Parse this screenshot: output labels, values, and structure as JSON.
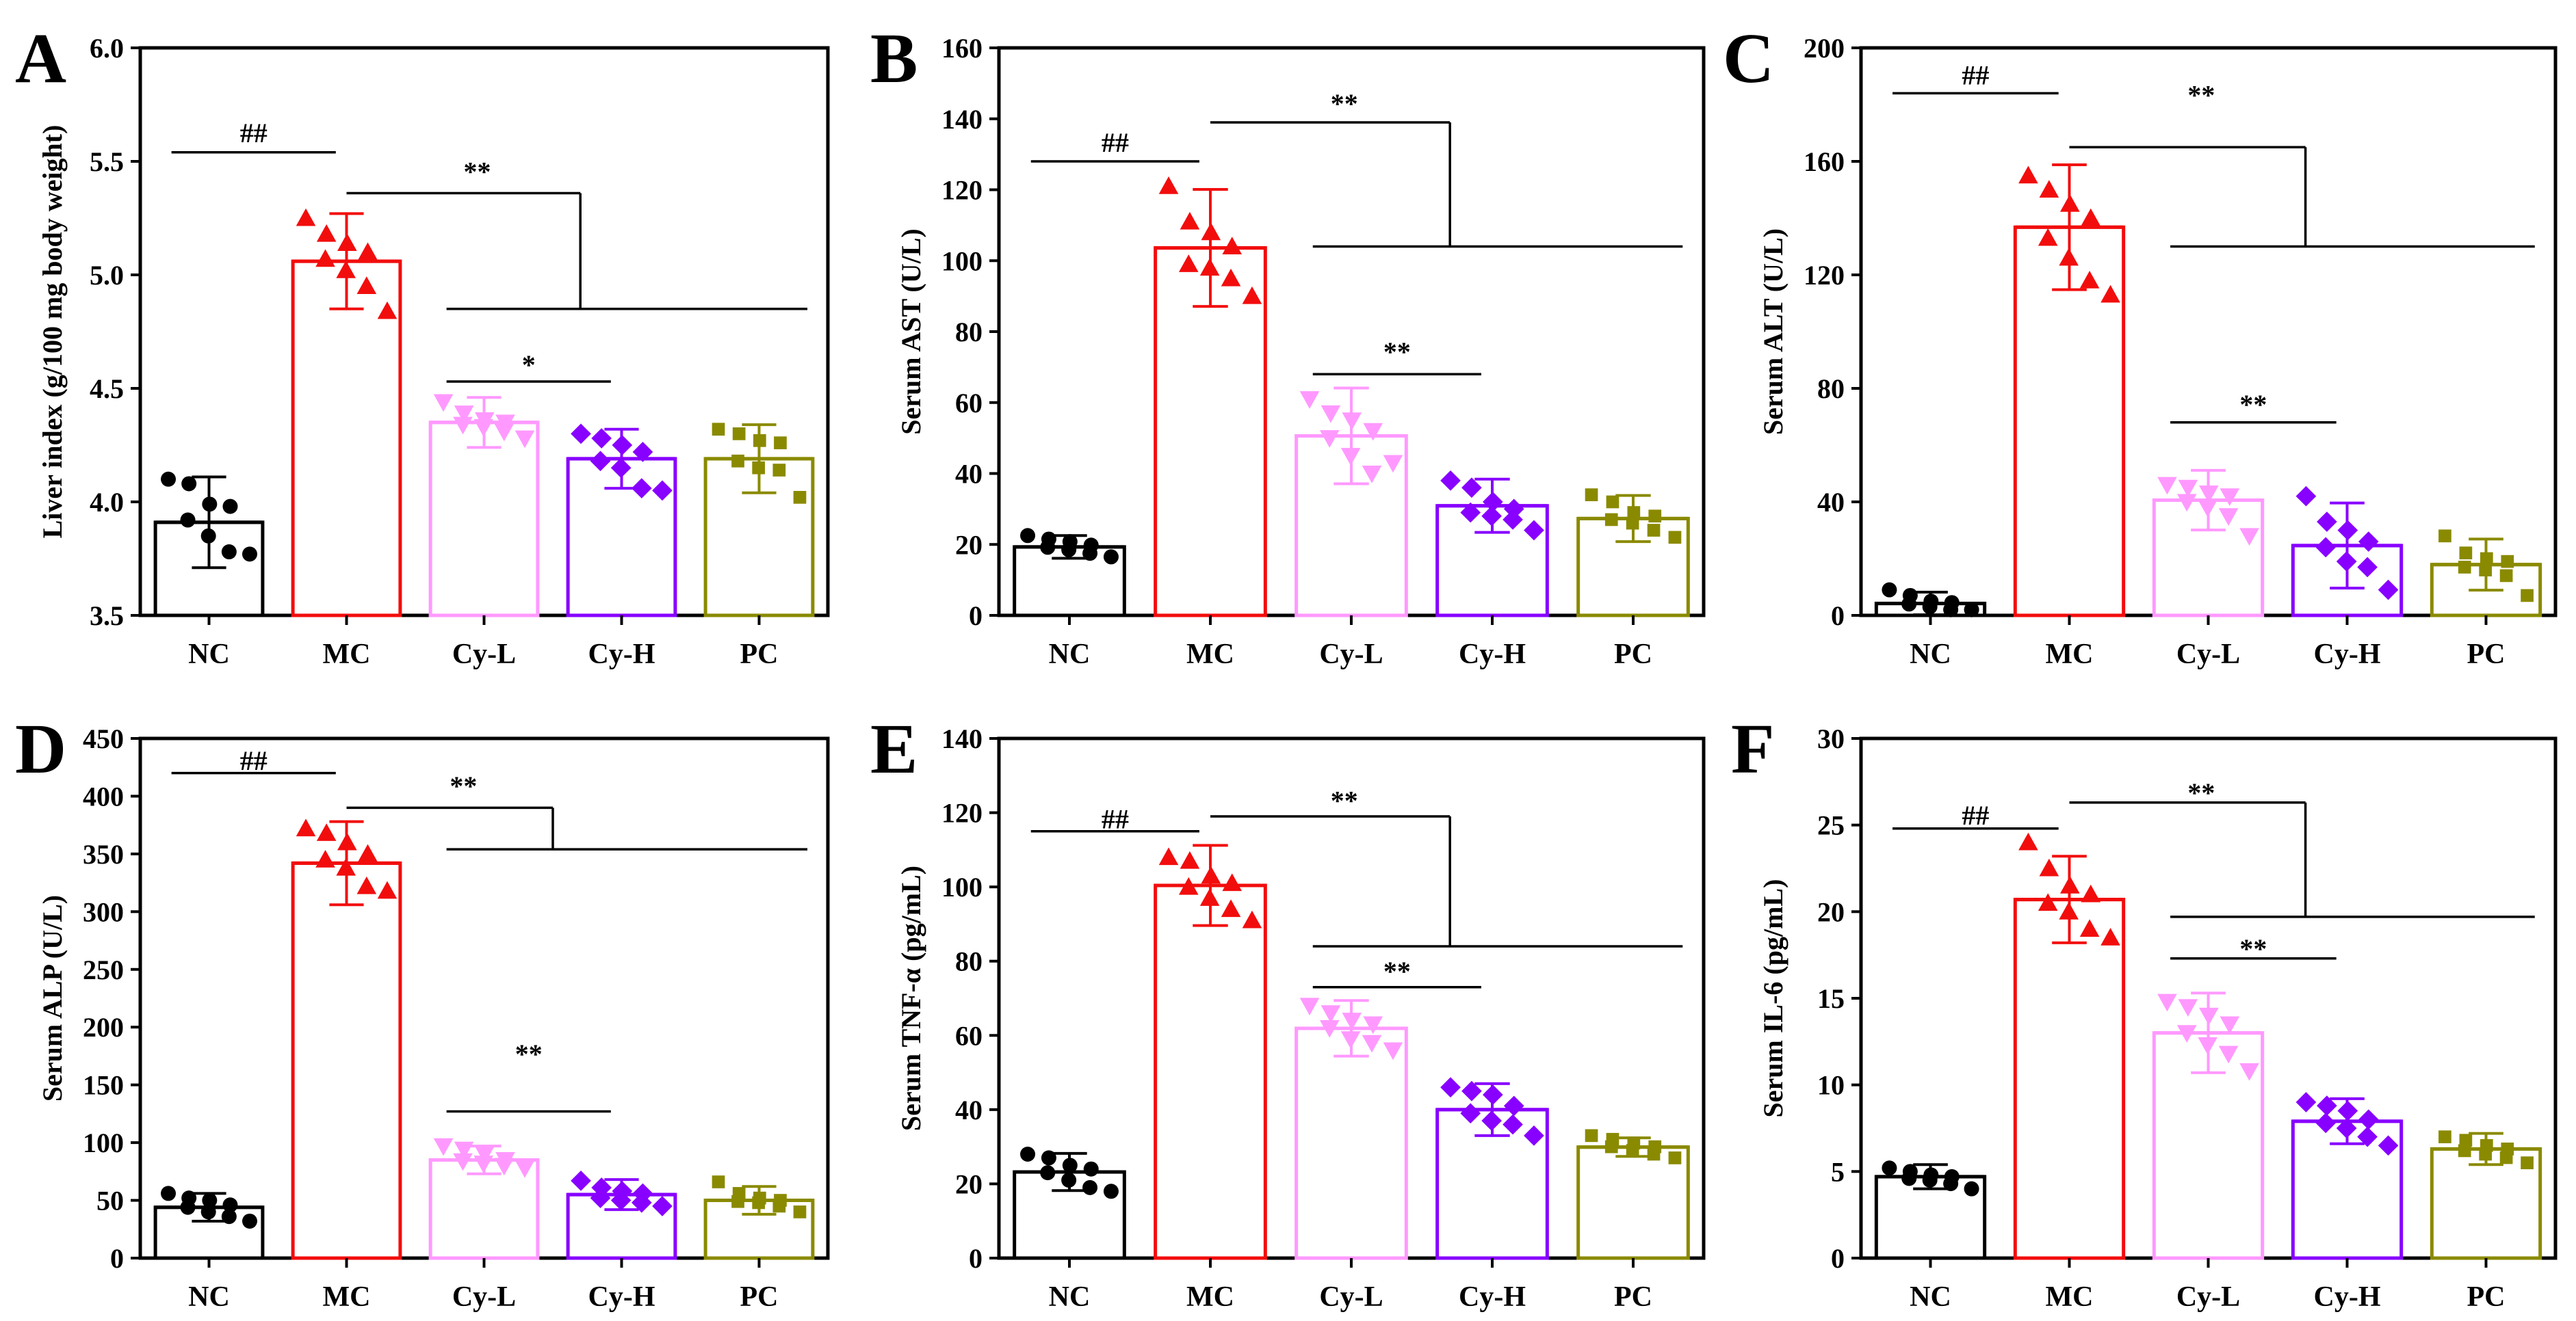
{
  "figure": {
    "categories": [
      "NC",
      "MC",
      "Cy-L",
      "Cy-H",
      "PC"
    ]
  },
  "colors": {
    "NC": "#000000",
    "MC": "#f20d0d",
    "Cy-L": "#ff99ff",
    "Cy-H": "#8800ff",
    "PC": "#8a8a00",
    "axis": "#000000"
  },
  "markers": {
    "NC": "circle",
    "MC": "triangle-up",
    "Cy-L": "triangle-down",
    "Cy-H": "diamond",
    "PC": "square"
  },
  "chart_data": [
    {
      "panel": "A",
      "type": "bar",
      "ylabel": "Liver index (g/100 mg  body weight)",
      "ylim": [
        3.5,
        6.0
      ],
      "yticks": [
        "3.5",
        "4.0",
        "4.5",
        "5.0",
        "5.5",
        "6.0"
      ],
      "categories": [
        "NC",
        "MC",
        "Cy-L",
        "Cy-H",
        "PC"
      ],
      "values": [
        3.91,
        5.06,
        4.35,
        4.19,
        4.19
      ],
      "errors": [
        0.2,
        0.21,
        0.11,
        0.13,
        0.15
      ],
      "points": [
        [
          4.1,
          4.08,
          3.99,
          3.98,
          3.92,
          3.85,
          3.78,
          3.77
        ],
        [
          5.25,
          5.18,
          5.14,
          5.1,
          5.07,
          5.02,
          4.95,
          4.84
        ],
        [
          4.44,
          4.39,
          4.36,
          4.35,
          4.34,
          4.33,
          4.31,
          4.28
        ],
        [
          4.3,
          4.28,
          4.25,
          4.22,
          4.18,
          4.15,
          4.06,
          4.05
        ],
        [
          4.32,
          4.3,
          4.27,
          4.26,
          4.18,
          4.15,
          4.14,
          4.02
        ]
      ],
      "annotations": [
        {
          "label": "##",
          "from": 0,
          "to": 1,
          "y": 5.54,
          "label_y": 5.62
        },
        {
          "label": "**",
          "from": 1,
          "bracket_y": 5.36,
          "stem_at": 3.2,
          "to_y": 4.85,
          "bottom_from": 2,
          "bottom_to": 4,
          "label_y": 5.45
        },
        {
          "label": "*",
          "from": 2,
          "to": 3,
          "y": 4.53,
          "label_y": 4.6
        }
      ]
    },
    {
      "panel": "B",
      "type": "bar",
      "ylabel": "Serum AST (U/L)",
      "ylim": [
        0,
        160
      ],
      "yticks": [
        "0",
        "20",
        "40",
        "60",
        "80",
        "100",
        "120",
        "140",
        "160"
      ],
      "categories": [
        "NC",
        "MC",
        "Cy-L",
        "Cy-H",
        "PC"
      ],
      "values": [
        19.3,
        103.6,
        50.6,
        30.9,
        27.3
      ],
      "errors": [
        3.2,
        16.5,
        13.5,
        7.5,
        6.5
      ],
      "points": [
        [
          22.5,
          21.5,
          20.8,
          19.8,
          19.2,
          18.5,
          17.5,
          16.5
        ],
        [
          121,
          111,
          108,
          104,
          99,
          98,
          95,
          90
        ],
        [
          61,
          57,
          55,
          52,
          50,
          45,
          40,
          43
        ],
        [
          38,
          36,
          32,
          30,
          29,
          28,
          27,
          24
        ],
        [
          34,
          32,
          29,
          28,
          27,
          26,
          24,
          22
        ]
      ],
      "annotations": [
        {
          "label": "##",
          "from": 0,
          "to": 1,
          "y": 128,
          "label_y": 133
        },
        {
          "label": "**",
          "from": 1,
          "bracket_y": 139,
          "stem_at": 3.2,
          "to_y": 104,
          "bottom_from": 2,
          "bottom_to": 4,
          "label_y": 144
        },
        {
          "label": "**",
          "from": 2,
          "to": 3,
          "y": 68,
          "label_y": 74
        }
      ]
    },
    {
      "panel": "C",
      "type": "bar",
      "ylabel": "Serum ALT (U/L)",
      "ylim": [
        0,
        200
      ],
      "yticks": [
        "0",
        "40",
        "80",
        "120",
        "160",
        "200"
      ],
      "categories": [
        "NC",
        "MC",
        "Cy-L",
        "Cy-H",
        "PC"
      ],
      "values": [
        4.2,
        136.8,
        40.6,
        24.6,
        17.9
      ],
      "errors": [
        4.0,
        22.0,
        10.5,
        15.0,
        9.0
      ],
      "points": [
        [
          9,
          7,
          5,
          4.5,
          4,
          3,
          2,
          2
        ],
        [
          155,
          150,
          145,
          140,
          133,
          126,
          118,
          113
        ],
        [
          46,
          45,
          43,
          42,
          40,
          38,
          35,
          28
        ],
        [
          42,
          33,
          30,
          26,
          24,
          19,
          17,
          9
        ],
        [
          28,
          22,
          20,
          19,
          17,
          16,
          14,
          7
        ]
      ],
      "annotations": [
        {
          "label": "##",
          "from": 0,
          "to": 1,
          "y": 184,
          "label_y": 190
        },
        {
          "label": "**",
          "from": 1,
          "bracket_y": 165,
          "stem_at": 3.2,
          "to_y": 130,
          "bottom_from": 2,
          "bottom_to": 4,
          "label_y": 183
        },
        {
          "label": "**",
          "from": 2,
          "to": 3,
          "y": 68,
          "label_y": 74
        }
      ]
    },
    {
      "panel": "D",
      "type": "bar",
      "ylabel": "Serum ALP (U/L)",
      "ylim": [
        0,
        450
      ],
      "yticks": [
        "0",
        "50",
        "100",
        "150",
        "200",
        "250",
        "300",
        "350",
        "400",
        "450"
      ],
      "categories": [
        "NC",
        "MC",
        "Cy-L",
        "Cy-H",
        "PC"
      ],
      "values": [
        44,
        342,
        85,
        55,
        50
      ],
      "errors": [
        12,
        36,
        12,
        13,
        12
      ],
      "points": [
        [
          56,
          52,
          50,
          46,
          44,
          40,
          36,
          32
        ],
        [
          372,
          368,
          360,
          350,
          345,
          338,
          322,
          318
        ],
        [
          97,
          94,
          90,
          85,
          84,
          82,
          80,
          78
        ],
        [
          67,
          61,
          58,
          56,
          52,
          50,
          48,
          45
        ],
        [
          66,
          56,
          52,
          50,
          49,
          48,
          45,
          40
        ]
      ],
      "annotations": [
        {
          "label": "##",
          "from": 0,
          "to": 1,
          "y": 420,
          "label_y": 430
        },
        {
          "label": "**",
          "from": 1,
          "bracket_y": 390,
          "stem_at": 3.0,
          "to_y": 354,
          "bottom_from": 2,
          "bottom_to": 4,
          "label_y": 408
        },
        {
          "label": "**",
          "from": 2,
          "to": 3,
          "y": 127,
          "label_y": 176
        }
      ]
    },
    {
      "panel": "E",
      "type": "bar",
      "ylabel": "Serum TNF-α (pg/mL)",
      "ylim": [
        0,
        140
      ],
      "yticks": [
        "0",
        "20",
        "40",
        "60",
        "80",
        "100",
        "120",
        "140"
      ],
      "categories": [
        "NC",
        "MC",
        "Cy-L",
        "Cy-H",
        "PC"
      ],
      "values": [
        23.2,
        100.4,
        61.9,
        40.0,
        29.9
      ],
      "errors": [
        5.0,
        10.8,
        7.5,
        7.0,
        2.5
      ],
      "points": [
        [
          28,
          27,
          25,
          24,
          23,
          21,
          19,
          18
        ],
        [
          108,
          107,
          103,
          101,
          100,
          97,
          94,
          91
        ],
        [
          68,
          66,
          64,
          63,
          62,
          59,
          58,
          56
        ],
        [
          46,
          45,
          44,
          41,
          39,
          37,
          36,
          33
        ],
        [
          33,
          32,
          31,
          30,
          30,
          29,
          28,
          27
        ]
      ],
      "annotations": [
        {
          "label": "##",
          "from": 0,
          "to": 1,
          "y": 115,
          "label_y": 118
        },
        {
          "label": "**",
          "from": 1,
          "bracket_y": 119,
          "stem_at": 3.2,
          "to_y": 84,
          "bottom_from": 2,
          "bottom_to": 4,
          "label_y": 123
        },
        {
          "label": "**",
          "from": 2,
          "to": 3,
          "y": 73,
          "label_y": 77
        }
      ]
    },
    {
      "panel": "F",
      "type": "bar",
      "ylabel": "Serum IL-6 (pg/mL)",
      "ylim": [
        0,
        30
      ],
      "yticks": [
        "0",
        "5",
        "10",
        "15",
        "20",
        "25",
        "30"
      ],
      "categories": [
        "NC",
        "MC",
        "Cy-L",
        "Cy-H",
        "PC"
      ],
      "values": [
        4.7,
        20.7,
        13.0,
        7.9,
        6.3
      ],
      "errors": [
        0.7,
        2.5,
        2.3,
        1.3,
        0.9
      ],
      "points": [
        [
          5.2,
          5.0,
          4.8,
          4.7,
          4.6,
          4.5,
          4.3,
          4.0
        ],
        [
          24.0,
          22.5,
          21.5,
          21.0,
          20.5,
          20.0,
          19.0,
          18.5
        ],
        [
          14.8,
          14.5,
          14.0,
          13.5,
          13.0,
          12.3,
          11.8,
          10.8
        ],
        [
          9.0,
          8.8,
          8.5,
          8.0,
          7.8,
          7.5,
          7.0,
          6.5
        ],
        [
          7.0,
          6.8,
          6.5,
          6.3,
          6.2,
          6.0,
          5.8,
          5.5
        ]
      ],
      "annotations": [
        {
          "label": "##",
          "from": 0,
          "to": 1,
          "y": 24.8,
          "label_y": 25.5
        },
        {
          "label": "**",
          "from": 1,
          "bracket_y": 26.3,
          "stem_at": 3.2,
          "to_y": 19.7,
          "bottom_from": 2,
          "bottom_to": 4,
          "label_y": 26.8
        },
        {
          "label": "**",
          "from": 2,
          "to": 3,
          "y": 17.3,
          "label_y": 17.8
        }
      ]
    }
  ]
}
